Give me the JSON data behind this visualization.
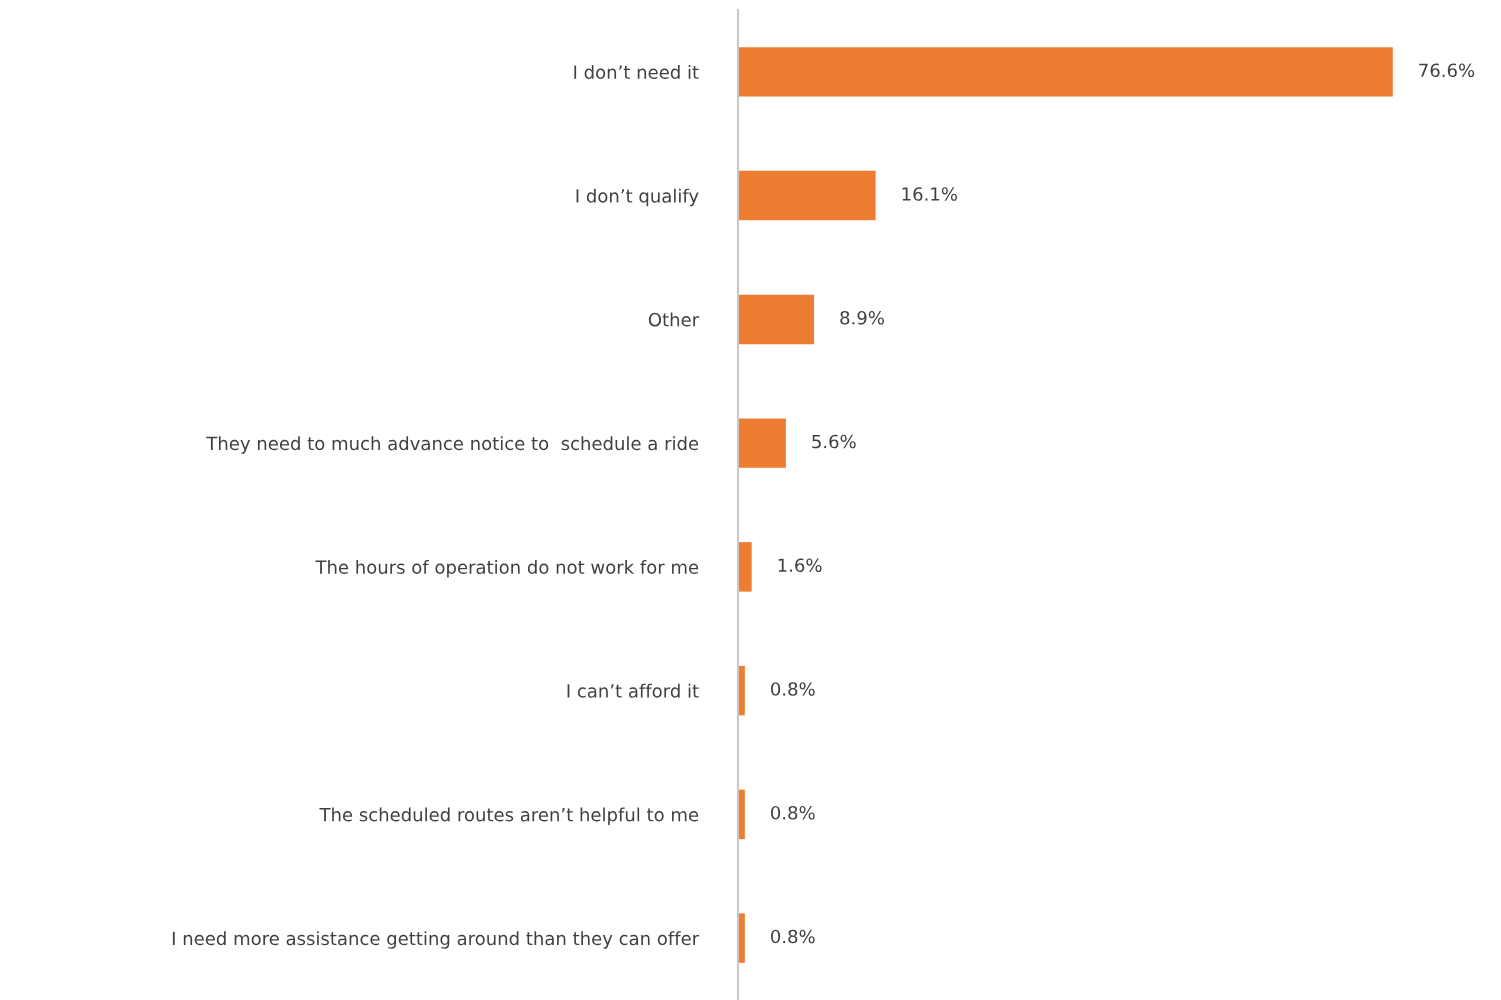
{
  "chart_data": {
    "type": "bar",
    "orientation": "horizontal",
    "categories": [
      "I don’t need it",
      "I don’t qualify",
      "Other",
      "They need to much advance notice to  schedule a ride",
      "The hours of operation do not work for me",
      "I can’t afford it",
      "The scheduled routes aren’t helpful to me",
      "I need more assistance getting around than they can offer"
    ],
    "values": [
      76.6,
      16.1,
      8.9,
      5.6,
      1.6,
      0.8,
      0.8,
      0.8
    ],
    "value_labels": [
      "76.6%",
      "16.1%",
      "8.9%",
      "5.6%",
      "1.6%",
      "0.8%",
      "0.8%",
      "0.8%"
    ],
    "color": "#ed7d31",
    "grid": false,
    "legend": false
  }
}
